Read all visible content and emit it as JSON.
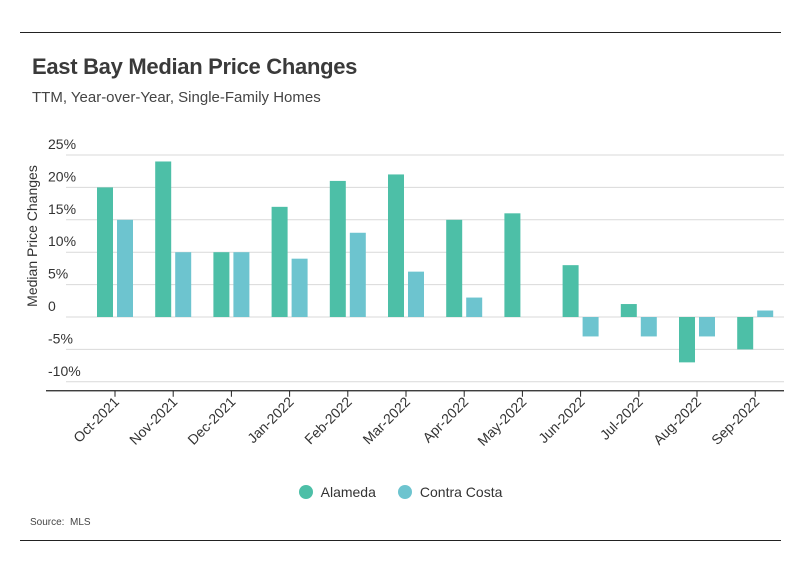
{
  "colors": {
    "alameda": "#4dbfa7",
    "contra_costa": "#6dc4cf"
  },
  "header": {
    "title": "East Bay Median Price Changes",
    "subtitle": "TTM, Year-over-Year, Single-Family Homes"
  },
  "footer": {
    "source_label": "Source:",
    "source_value": "MLS"
  },
  "legend": [
    {
      "name": "Alameda",
      "color": "#4dbfa7"
    },
    {
      "name": "Contra Costa",
      "color": "#6dc4cf"
    }
  ],
  "chart_data": {
    "type": "bar",
    "title": "East Bay Median Price Changes",
    "subtitle": "TTM, Year-over-Year, Single-Family Homes",
    "xlabel": "",
    "ylabel": "Median Price Changes",
    "ylim": [
      -12,
      26
    ],
    "yticks": [
      25,
      20,
      15,
      10,
      5,
      0,
      -5,
      -10
    ],
    "ytick_labels": [
      "25%",
      "20%",
      "15%",
      "10%",
      "5%",
      "0",
      "-5%",
      "-10%"
    ],
    "grid": true,
    "legend_position": "bottom",
    "categories": [
      "Oct-2021",
      "Nov-2021",
      "Dec-2021",
      "Jan-2022",
      "Feb-2022",
      "Mar-2022",
      "Apr-2022",
      "May-2022",
      "Jun-2022",
      "Jul-2022",
      "Aug-2022",
      "Sep-2022"
    ],
    "series": [
      {
        "name": "Alameda",
        "color": "#4dbfa7",
        "values": [
          20,
          24,
          10,
          17,
          21,
          22,
          15,
          16,
          8,
          2,
          -7,
          -5
        ]
      },
      {
        "name": "Contra Costa",
        "color": "#6dc4cf",
        "values": [
          15,
          10,
          10,
          9,
          13,
          7,
          3,
          null,
          -3,
          -3,
          -3,
          1
        ]
      }
    ]
  }
}
